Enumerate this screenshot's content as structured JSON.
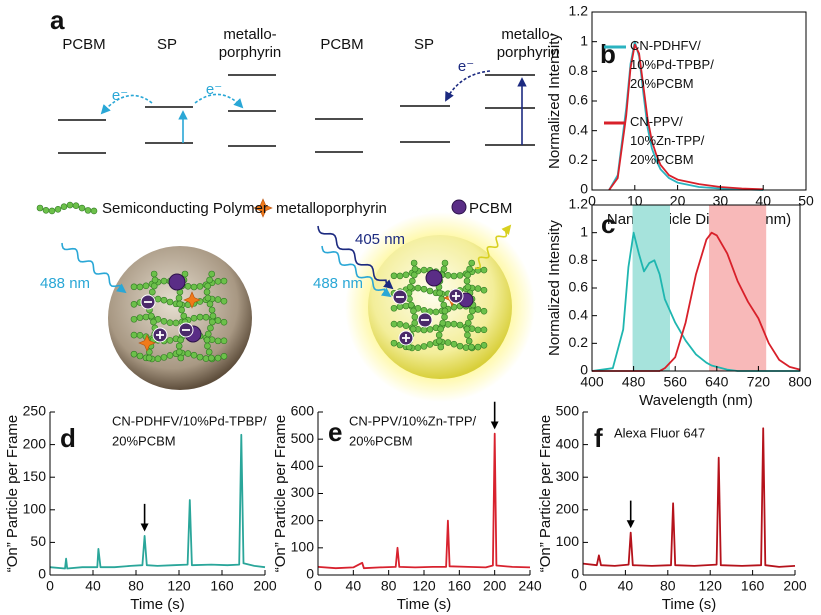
{
  "diagram": {
    "label": "a",
    "schemes": [
      {
        "levels": [
          [
            "PCBM"
          ],
          [
            "SP"
          ],
          [
            "metallo-",
            "porphyrin"
          ]
        ],
        "electrons": [
          "e⁻",
          "e⁻"
        ]
      },
      {
        "levels": [
          [
            "PCBM"
          ],
          [
            "SP"
          ],
          [
            "metallo-",
            "porphyrin"
          ]
        ],
        "electrons": [
          "e⁻"
        ]
      }
    ],
    "legend": [
      "Semiconducting Polymer",
      "metalloporphyrin",
      "PCBM"
    ],
    "particles": [
      {
        "excitation": [
          "488 nm"
        ]
      },
      {
        "excitation": [
          "405 nm",
          "488 nm"
        ]
      }
    ]
  },
  "chart_data": [
    {
      "type": "line",
      "label": "b",
      "xlabel": "Nanoparticle Diameter (nm)",
      "ylabel": "Normalized Intensity",
      "frame": "box",
      "x": [
        4,
        6,
        8,
        9,
        10,
        11,
        12,
        13,
        14,
        15,
        16,
        18,
        20,
        25,
        30,
        35,
        40
      ],
      "series": [
        {
          "name": "CN-PDHFV/10%Pd-TPBP/20%PCBM",
          "color": "#2bb3c0",
          "values": [
            0,
            0.1,
            0.55,
            0.85,
            1,
            0.9,
            0.65,
            0.42,
            0.28,
            0.2,
            0.14,
            0.08,
            0.05,
            0.02,
            0.01,
            0.005,
            0
          ]
        },
        {
          "name": "CN-PPV/10%Zn-TPP/20%PCBM",
          "color": "#d8202a",
          "values": [
            0,
            0.08,
            0.5,
            0.82,
            0.98,
            0.92,
            0.7,
            0.48,
            0.33,
            0.24,
            0.17,
            0.1,
            0.07,
            0.04,
            0.02,
            0.01,
            0.005
          ]
        }
      ],
      "xlim": [
        0,
        50
      ],
      "ylim": [
        0,
        1.2
      ],
      "xticks": [
        0,
        10,
        20,
        30,
        40,
        50
      ],
      "yticks": [
        0,
        0.2,
        0.4,
        0.6,
        0.8,
        1,
        1.2
      ]
    },
    {
      "type": "line",
      "label": "c",
      "xlabel": "Wavelength (nm)",
      "ylabel": "Normalized Intensity",
      "frame": "box",
      "x": [
        400,
        440,
        460,
        470,
        480,
        490,
        500,
        510,
        520,
        530,
        540,
        560,
        580,
        600,
        620,
        630,
        640,
        660,
        680,
        700,
        720,
        740,
        760,
        780,
        800
      ],
      "series": [
        {
          "color": "#1fb6b0",
          "values": [
            0,
            0.02,
            0.3,
            0.75,
            1,
            0.85,
            0.72,
            0.78,
            0.8,
            0.7,
            0.52,
            0.35,
            0.22,
            0.12,
            0.06,
            0.04,
            0.03,
            0.01,
            0,
            0,
            0,
            0,
            0,
            0,
            0
          ]
        },
        {
          "color": "#d8202a",
          "values": [
            0,
            0,
            0,
            0,
            0,
            0,
            0,
            0,
            0,
            0,
            0.02,
            0.1,
            0.35,
            0.7,
            0.95,
            1,
            0.98,
            0.85,
            0.65,
            0.5,
            0.38,
            0.2,
            0.08,
            0.03,
            0.01
          ]
        }
      ],
      "shaded": [
        {
          "xlim": [
            478,
            550
          ],
          "color": "#a6e3dc"
        },
        {
          "xlim": [
            625,
            735
          ],
          "color": "#f8b9b9"
        }
      ],
      "xlim": [
        400,
        800
      ],
      "ylim": [
        0,
        1.2
      ],
      "xticks": [
        400,
        480,
        560,
        640,
        720,
        800
      ],
      "yticks": [
        0,
        0.2,
        0.4,
        0.6,
        0.8,
        1,
        1.2
      ]
    },
    {
      "type": "line",
      "label": "d",
      "xlabel": "Time (s)",
      "ylabel": "“On” Particle per Frame",
      "frame": "axes",
      "annotation": [
        "CN-PDHFV/10%Pd-TPBP/",
        "20%PCBM"
      ],
      "arrow_x": 88,
      "x": [
        0,
        14,
        15,
        16,
        30,
        44,
        45,
        47,
        60,
        75,
        86,
        88,
        90,
        100,
        115,
        128,
        130,
        132,
        150,
        165,
        176,
        178,
        180,
        190,
        200
      ],
      "series": [
        {
          "color": "#2aa69a",
          "values": [
            12,
            10,
            25,
            10,
            12,
            12,
            40,
            12,
            12,
            14,
            15,
            60,
            15,
            14,
            15,
            16,
            115,
            15,
            16,
            15,
            16,
            215,
            18,
            14,
            12
          ]
        }
      ],
      "xlim": [
        0,
        200
      ],
      "ylim": [
        0,
        250
      ],
      "xticks": [
        0,
        40,
        80,
        120,
        160,
        200
      ],
      "yticks": [
        0,
        50,
        100,
        150,
        200,
        250
      ]
    },
    {
      "type": "line",
      "label": "e",
      "xlabel": "Time (s)",
      "ylabel": "“On” Particle per Frame",
      "frame": "axes",
      "annotation": [
        "CN-PPV/10%Zn-TPP/",
        "20%PCBM"
      ],
      "arrow_x": 200,
      "x": [
        0,
        20,
        40,
        50,
        52,
        70,
        88,
        90,
        92,
        110,
        130,
        145,
        147,
        149,
        170,
        190,
        198,
        200,
        202,
        220,
        240
      ],
      "series": [
        {
          "color": "#d8222e",
          "values": [
            30,
            25,
            28,
            45,
            25,
            28,
            30,
            100,
            30,
            28,
            30,
            30,
            200,
            32,
            30,
            28,
            35,
            520,
            35,
            30,
            28
          ]
        }
      ],
      "xlim": [
        0,
        240
      ],
      "ylim": [
        0,
        600
      ],
      "xticks": [
        0,
        40,
        80,
        120,
        160,
        200,
        240
      ],
      "yticks": [
        0,
        100,
        200,
        300,
        400,
        500,
        600
      ]
    },
    {
      "type": "line",
      "label": "f",
      "xlabel": "Time (s)",
      "ylabel": "“On” Particle per Frame",
      "frame": "axes",
      "annotation": [
        "Alexa Fluor 647"
      ],
      "arrow_x": 45,
      "x": [
        0,
        13,
        15,
        17,
        30,
        43,
        45,
        47,
        65,
        83,
        85,
        87,
        105,
        126,
        128,
        130,
        150,
        168,
        170,
        172,
        185,
        200
      ],
      "series": [
        {
          "color": "#b5121b",
          "values": [
            35,
            30,
            60,
            30,
            28,
            32,
            130,
            30,
            28,
            30,
            220,
            30,
            28,
            32,
            360,
            30,
            28,
            30,
            450,
            30,
            25,
            28
          ]
        }
      ],
      "xlim": [
        0,
        200
      ],
      "ylim": [
        0,
        500
      ],
      "xticks": [
        0,
        40,
        80,
        120,
        160,
        200
      ],
      "yticks": [
        0,
        100,
        200,
        300,
        400,
        500
      ]
    }
  ]
}
